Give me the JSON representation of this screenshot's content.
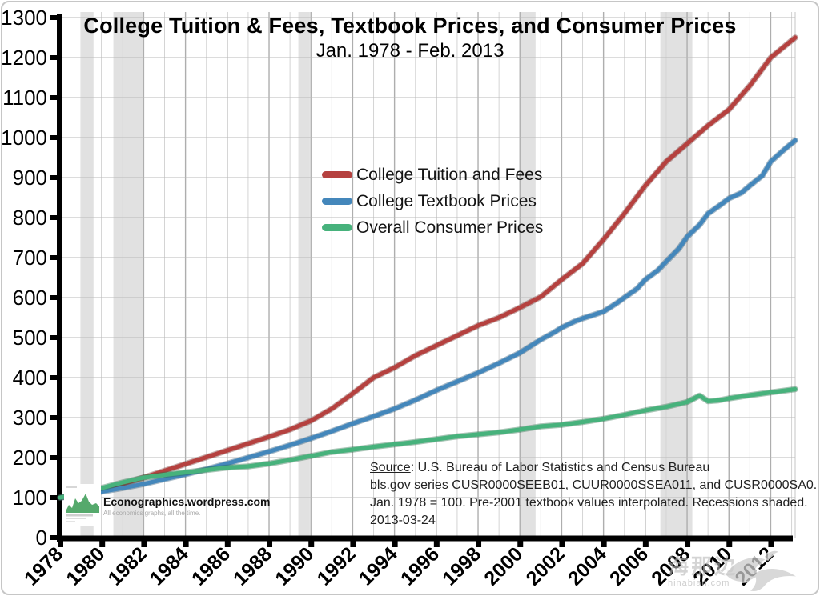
{
  "title": "College Tuition &amp; Fees, Textbook Prices, and Consumer Prices",
  "chart_data": {
    "type": "line",
    "title": "College Tuition & Fees, Textbook Prices, and Consumer Prices",
    "subtitle": "Jan. 1978 - Feb. 2013",
    "x_axis": {
      "range": [
        1978,
        2013.17
      ],
      "ticks": [
        1978,
        1980,
        1982,
        1984,
        1986,
        1988,
        1990,
        1992,
        1994,
        1996,
        1998,
        2000,
        2002,
        2004,
        2006,
        2008,
        2010,
        2012
      ],
      "grid_minor_every_years": 1
    },
    "y_axis": {
      "range": [
        0,
        1300
      ],
      "ticks": [
        0,
        100,
        200,
        300,
        400,
        500,
        600,
        700,
        800,
        900,
        1000,
        1100,
        1200,
        1300
      ]
    },
    "legend_position": "upper-middle-left",
    "grid": "on",
    "recessions_shaded": [
      [
        1979.03,
        1979.6
      ],
      [
        1980.55,
        1981.95
      ],
      [
        1989.4,
        1989.95
      ],
      [
        2000.0,
        2000.75
      ],
      [
        2006.72,
        2008.25
      ]
    ],
    "recession_band_color": "#d9d9d9",
    "series": [
      {
        "name": "College Tuition and Fees",
        "color": "#b5413f",
        "edge_color": "#6f2523",
        "points": [
          [
            1978,
            100
          ],
          [
            1979,
            109
          ],
          [
            1980,
            120
          ],
          [
            1981,
            134
          ],
          [
            1982,
            150
          ],
          [
            1983,
            167
          ],
          [
            1984,
            184
          ],
          [
            1985,
            201
          ],
          [
            1986,
            218
          ],
          [
            1987,
            235
          ],
          [
            1988,
            252
          ],
          [
            1989,
            270
          ],
          [
            1990,
            292
          ],
          [
            1991,
            322
          ],
          [
            1992,
            360
          ],
          [
            1993,
            400
          ],
          [
            1994,
            425
          ],
          [
            1995,
            455
          ],
          [
            1996,
            480
          ],
          [
            1997,
            505
          ],
          [
            1998,
            530
          ],
          [
            1999,
            550
          ],
          [
            2000,
            575
          ],
          [
            2001,
            602
          ],
          [
            2002,
            645
          ],
          [
            2003,
            685
          ],
          [
            2004,
            745
          ],
          [
            2005,
            810
          ],
          [
            2006,
            880
          ],
          [
            2007,
            940
          ],
          [
            2008,
            985
          ],
          [
            2009,
            1030
          ],
          [
            2010,
            1070
          ],
          [
            2011,
            1130
          ],
          [
            2012,
            1200
          ],
          [
            2013.17,
            1250
          ]
        ]
      },
      {
        "name": "College Textbook Prices",
        "color": "#4487bb",
        "edge_color": "#214f74",
        "points": [
          [
            1978,
            100
          ],
          [
            1979,
            107
          ],
          [
            1980,
            115
          ],
          [
            1981,
            124
          ],
          [
            1982,
            134
          ],
          [
            1983,
            146
          ],
          [
            1984,
            158
          ],
          [
            1985,
            171
          ],
          [
            1986,
            185
          ],
          [
            1987,
            200
          ],
          [
            1988,
            215
          ],
          [
            1989,
            231
          ],
          [
            1990,
            248
          ],
          [
            1991,
            266
          ],
          [
            1992,
            285
          ],
          [
            1993,
            303
          ],
          [
            1994,
            322
          ],
          [
            1995,
            344
          ],
          [
            1996,
            368
          ],
          [
            1997,
            390
          ],
          [
            1998,
            412
          ],
          [
            1999,
            436
          ],
          [
            2000,
            462
          ],
          [
            2001,
            495
          ],
          [
            2001.6,
            512
          ],
          [
            2002,
            525
          ],
          [
            2002.6,
            540
          ],
          [
            2003,
            548
          ],
          [
            2003.6,
            558
          ],
          [
            2004,
            565
          ],
          [
            2004.6,
            585
          ],
          [
            2005,
            600
          ],
          [
            2005.6,
            622
          ],
          [
            2006,
            645
          ],
          [
            2006.6,
            668
          ],
          [
            2007,
            690
          ],
          [
            2007.6,
            722
          ],
          [
            2008,
            752
          ],
          [
            2008.6,
            782
          ],
          [
            2009,
            810
          ],
          [
            2009.6,
            832
          ],
          [
            2010,
            848
          ],
          [
            2010.6,
            862
          ],
          [
            2011,
            880
          ],
          [
            2011.6,
            905
          ],
          [
            2012,
            940
          ],
          [
            2012.6,
            968
          ],
          [
            2013.17,
            993
          ]
        ]
      },
      {
        "name": "Overall Consumer Prices",
        "color": "#47b27c",
        "edge_color": "#256b47",
        "points": [
          [
            1978,
            100
          ],
          [
            1979,
            110
          ],
          [
            1980,
            124
          ],
          [
            1981,
            138
          ],
          [
            1982,
            150
          ],
          [
            1983,
            157
          ],
          [
            1984,
            163
          ],
          [
            1985,
            169
          ],
          [
            1986,
            175
          ],
          [
            1987,
            178
          ],
          [
            1988,
            185
          ],
          [
            1989,
            194
          ],
          [
            1990,
            204
          ],
          [
            1991,
            214
          ],
          [
            1992,
            220
          ],
          [
            1993,
            227
          ],
          [
            1994,
            233
          ],
          [
            1995,
            239
          ],
          [
            1996,
            246
          ],
          [
            1997,
            253
          ],
          [
            1998,
            258
          ],
          [
            1999,
            263
          ],
          [
            2000,
            270
          ],
          [
            2001,
            278
          ],
          [
            2002,
            282
          ],
          [
            2003,
            289
          ],
          [
            2004,
            297
          ],
          [
            2005,
            307
          ],
          [
            2006,
            318
          ],
          [
            2007,
            327
          ],
          [
            2008,
            339
          ],
          [
            2008.6,
            355
          ],
          [
            2009,
            341
          ],
          [
            2009.5,
            343
          ],
          [
            2010,
            348
          ],
          [
            2011,
            356
          ],
          [
            2012,
            363
          ],
          [
            2013.17,
            371
          ]
        ]
      }
    ]
  },
  "source_note": {
    "label": "Source",
    "line1_rest": ": U.S. Bureau of Labor Statistics and Census Bureau",
    "line2": "bls.gov series CUSR0000SEEB01, CUUR0000SSEA011, and CUSR0000SA0.",
    "line3": "Jan. 1978 = 100. Pre-2001 textbook values interpolated. Recessions shaded.",
    "line4": "2013-03-24"
  },
  "branding": {
    "site": "Econographics.wordpress.com",
    "tagline": "All economics graphs, all the time."
  },
  "watermark": {
    "text": "海那边",
    "subtext": "hinabian.com"
  }
}
